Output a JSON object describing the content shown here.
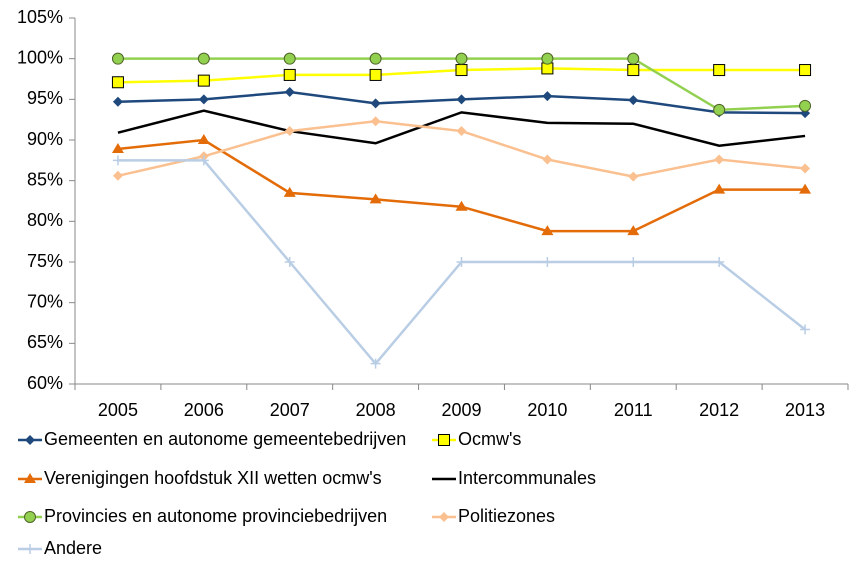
{
  "chart_data": {
    "type": "line",
    "categories": [
      "2005",
      "2006",
      "2007",
      "2008",
      "2009",
      "2010",
      "2011",
      "2012",
      "2013"
    ],
    "ylim": [
      60,
      105
    ],
    "yticks": [
      {
        "value": 60,
        "label": "60%"
      },
      {
        "value": 65,
        "label": "65%"
      },
      {
        "value": 70,
        "label": "70%"
      },
      {
        "value": 75,
        "label": "75%"
      },
      {
        "value": 80,
        "label": "80%"
      },
      {
        "value": 85,
        "label": "85%"
      },
      {
        "value": 90,
        "label": "90%"
      },
      {
        "value": 95,
        "label": "95%"
      },
      {
        "value": 100,
        "label": "100%"
      },
      {
        "value": 105,
        "label": "105%"
      }
    ],
    "grid": false,
    "legend": "bottom",
    "series": [
      {
        "name": "Gemeenten en autonome gemeentebedrijven",
        "color": "#1f497d",
        "marker": "diamond",
        "values": [
          94.7,
          95.0,
          95.9,
          94.5,
          95.0,
          95.4,
          94.9,
          93.4,
          93.3
        ]
      },
      {
        "name": "Ocmw's",
        "color": "#ffff00",
        "marker": "square",
        "values": [
          97.1,
          97.3,
          98.0,
          98.0,
          98.6,
          98.8,
          98.6,
          98.6,
          98.6
        ]
      },
      {
        "name": "Verenigingen hoofdstuk XII wetten ocmw's",
        "color": "#e36c09",
        "marker": "triangle",
        "values": [
          88.9,
          90.0,
          83.5,
          82.7,
          81.8,
          78.8,
          78.8,
          83.9,
          83.9
        ]
      },
      {
        "name": "Intercommunales",
        "color": "#000000",
        "marker": "none",
        "values": [
          90.9,
          93.6,
          91.1,
          89.6,
          93.4,
          92.1,
          92.0,
          89.3,
          90.5
        ]
      },
      {
        "name": "Provincies en autonome provinciebedrijven",
        "color": "#92d050",
        "marker": "circle",
        "values": [
          100,
          100,
          100,
          100,
          100,
          100,
          100,
          93.7,
          94.2
        ]
      },
      {
        "name": "Politiezones",
        "color": "#fac090",
        "marker": "diamond",
        "values": [
          85.6,
          88.0,
          91.1,
          92.3,
          91.1,
          87.6,
          85.5,
          87.6,
          86.5
        ]
      },
      {
        "name": "Andere",
        "color": "#b9cde5",
        "marker": "plus",
        "values": [
          87.5,
          87.5,
          75.0,
          62.5,
          75.0,
          75.0,
          75.0,
          75.0,
          66.7
        ]
      }
    ]
  }
}
